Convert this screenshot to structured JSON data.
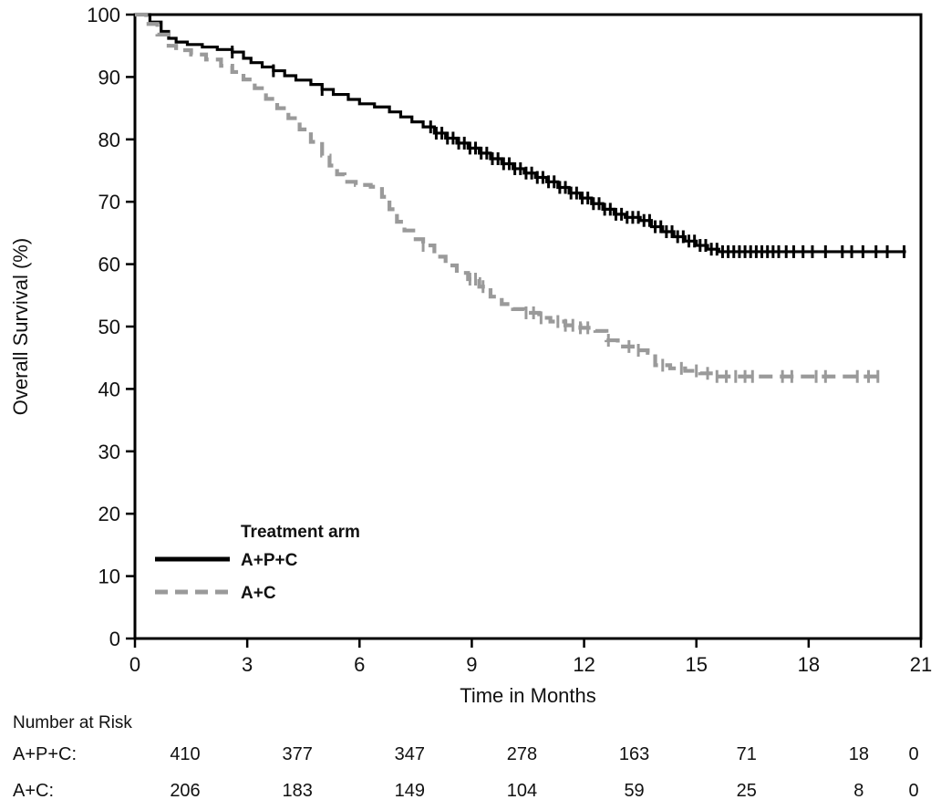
{
  "chart_data": {
    "type": "line",
    "subtype": "kaplan-meier-step",
    "title": "",
    "xlabel": "Time in Months",
    "ylabel": "Overall Survival (%)",
    "xlim": [
      0,
      21
    ],
    "ylim": [
      0,
      100
    ],
    "xticks": [
      0,
      3,
      6,
      9,
      12,
      15,
      18,
      21
    ],
    "yticks": [
      0,
      10,
      20,
      30,
      40,
      50,
      60,
      70,
      80,
      90,
      100
    ],
    "grid": false,
    "legend": {
      "title": "Treatment arm",
      "position": "lower-left-inside"
    },
    "series": [
      {
        "name": "A+P+C",
        "color": "#000000",
        "dash": "solid",
        "points": [
          [
            0,
            100
          ],
          [
            0.4,
            98.8
          ],
          [
            0.7,
            97.3
          ],
          [
            0.9,
            96.2
          ],
          [
            1.1,
            95.6
          ],
          [
            1.4,
            95.2
          ],
          [
            1.8,
            94.8
          ],
          [
            2.2,
            94.4
          ],
          [
            2.6,
            94
          ],
          [
            2.9,
            93
          ],
          [
            3.1,
            92.3
          ],
          [
            3.4,
            91.6
          ],
          [
            3.7,
            91
          ],
          [
            4.0,
            90.2
          ],
          [
            4.3,
            89.5
          ],
          [
            4.7,
            88.8
          ],
          [
            5.0,
            88
          ],
          [
            5.3,
            87.2
          ],
          [
            5.7,
            86.4
          ],
          [
            6.0,
            85.7
          ],
          [
            6.4,
            85.2
          ],
          [
            6.8,
            84.4
          ],
          [
            7.1,
            83.6
          ],
          [
            7.4,
            82.8
          ],
          [
            7.7,
            82
          ],
          [
            8.0,
            81
          ],
          [
            8.3,
            80.2
          ],
          [
            8.6,
            79.4
          ],
          [
            8.9,
            78.6
          ],
          [
            9.2,
            77.8
          ],
          [
            9.5,
            76.9
          ],
          [
            9.8,
            76.1
          ],
          [
            10.1,
            75.3
          ],
          [
            10.4,
            74.6
          ],
          [
            10.7,
            73.9
          ],
          [
            11.0,
            73.2
          ],
          [
            11.3,
            72.3
          ],
          [
            11.6,
            71.4
          ],
          [
            11.9,
            70.6
          ],
          [
            12.2,
            69.7
          ],
          [
            12.5,
            68.8
          ],
          [
            12.8,
            68
          ],
          [
            13.1,
            67.5
          ],
          [
            13.5,
            67
          ],
          [
            13.8,
            66
          ],
          [
            14.1,
            65.2
          ],
          [
            14.4,
            64.4
          ],
          [
            14.7,
            63.7
          ],
          [
            15.0,
            63
          ],
          [
            15.3,
            62.4
          ],
          [
            15.6,
            62
          ],
          [
            20.6,
            62
          ]
        ],
        "censor_times": [
          2.6,
          3.7,
          5.0,
          7.9,
          8.05,
          8.2,
          8.35,
          8.5,
          8.65,
          8.8,
          8.95,
          9.1,
          9.25,
          9.4,
          9.55,
          9.7,
          9.85,
          10.0,
          10.15,
          10.3,
          10.45,
          10.6,
          10.75,
          10.9,
          11.05,
          11.2,
          11.35,
          11.5,
          11.65,
          11.8,
          11.95,
          12.1,
          12.25,
          12.4,
          12.55,
          12.7,
          12.85,
          13.0,
          13.15,
          13.3,
          13.45,
          13.6,
          13.75,
          13.9,
          14.05,
          14.2,
          14.35,
          14.5,
          14.65,
          14.8,
          14.95,
          15.1,
          15.25,
          15.4,
          15.55,
          15.7,
          15.85,
          16.0,
          16.15,
          16.3,
          16.45,
          16.6,
          16.75,
          16.9,
          17.05,
          17.2,
          17.4,
          17.6,
          17.85,
          18.1,
          18.45,
          18.9,
          19.15,
          19.45,
          19.8,
          20.1,
          20.55
        ]
      },
      {
        "name": "A+C",
        "color": "#9a9a9a",
        "dash": "dashed",
        "points": [
          [
            0,
            100
          ],
          [
            0.3,
            98.5
          ],
          [
            0.6,
            96.8
          ],
          [
            0.9,
            95
          ],
          [
            1.1,
            94.3
          ],
          [
            1.5,
            93.6
          ],
          [
            1.9,
            92.8
          ],
          [
            2.3,
            91.8
          ],
          [
            2.6,
            90.8
          ],
          [
            2.9,
            89.6
          ],
          [
            3.2,
            88.2
          ],
          [
            3.5,
            86.5
          ],
          [
            3.8,
            85
          ],
          [
            4.1,
            83.4
          ],
          [
            4.4,
            81.6
          ],
          [
            4.7,
            79.6
          ],
          [
            5.0,
            77.4
          ],
          [
            5.2,
            75.8
          ],
          [
            5.4,
            74.4
          ],
          [
            5.6,
            73.2
          ],
          [
            5.9,
            72.7
          ],
          [
            6.3,
            72.4
          ],
          [
            6.6,
            70.8
          ],
          [
            6.8,
            68.8
          ],
          [
            7.0,
            66.8
          ],
          [
            7.2,
            65.4
          ],
          [
            7.5,
            64
          ],
          [
            7.7,
            63
          ],
          [
            8.0,
            61.2
          ],
          [
            8.3,
            59.8
          ],
          [
            8.6,
            58.6
          ],
          [
            8.9,
            57.6
          ],
          [
            9.2,
            56.4
          ],
          [
            9.5,
            54.8
          ],
          [
            9.8,
            53.6
          ],
          [
            10.1,
            52.8
          ],
          [
            10.4,
            52.2
          ],
          [
            10.8,
            51.4
          ],
          [
            11.1,
            50.8
          ],
          [
            11.5,
            50.2
          ],
          [
            11.9,
            49.8
          ],
          [
            12.3,
            49.3
          ],
          [
            12.6,
            47.8
          ],
          [
            12.9,
            46.8
          ],
          [
            13.3,
            46.2
          ],
          [
            13.7,
            45.8
          ],
          [
            13.9,
            43.8
          ],
          [
            14.3,
            43.3
          ],
          [
            14.7,
            42.9
          ],
          [
            15.1,
            42.5
          ],
          [
            15.5,
            42
          ],
          [
            19.9,
            42
          ]
        ],
        "censor_times": [
          7.7,
          8.95,
          9.1,
          9.3,
          10.45,
          10.65,
          10.85,
          11.3,
          11.5,
          11.7,
          11.9,
          12.1,
          12.65,
          13.2,
          13.45,
          14.1,
          14.6,
          15.0,
          15.3,
          15.55,
          15.8,
          16.05,
          16.3,
          16.5,
          17.3,
          17.55,
          18.2,
          18.45,
          19.3,
          19.6,
          19.85
        ]
      }
    ]
  },
  "risk_table": {
    "title": "Number at Risk",
    "times": [
      0,
      3,
      6,
      9,
      12,
      15,
      18,
      21
    ],
    "rows": [
      {
        "label": "A+P+C:",
        "values": [
          410,
          377,
          347,
          278,
          163,
          71,
          18,
          0
        ]
      },
      {
        "label": "A+C:",
        "values": [
          206,
          183,
          149,
          104,
          59,
          25,
          8,
          0
        ]
      }
    ]
  }
}
